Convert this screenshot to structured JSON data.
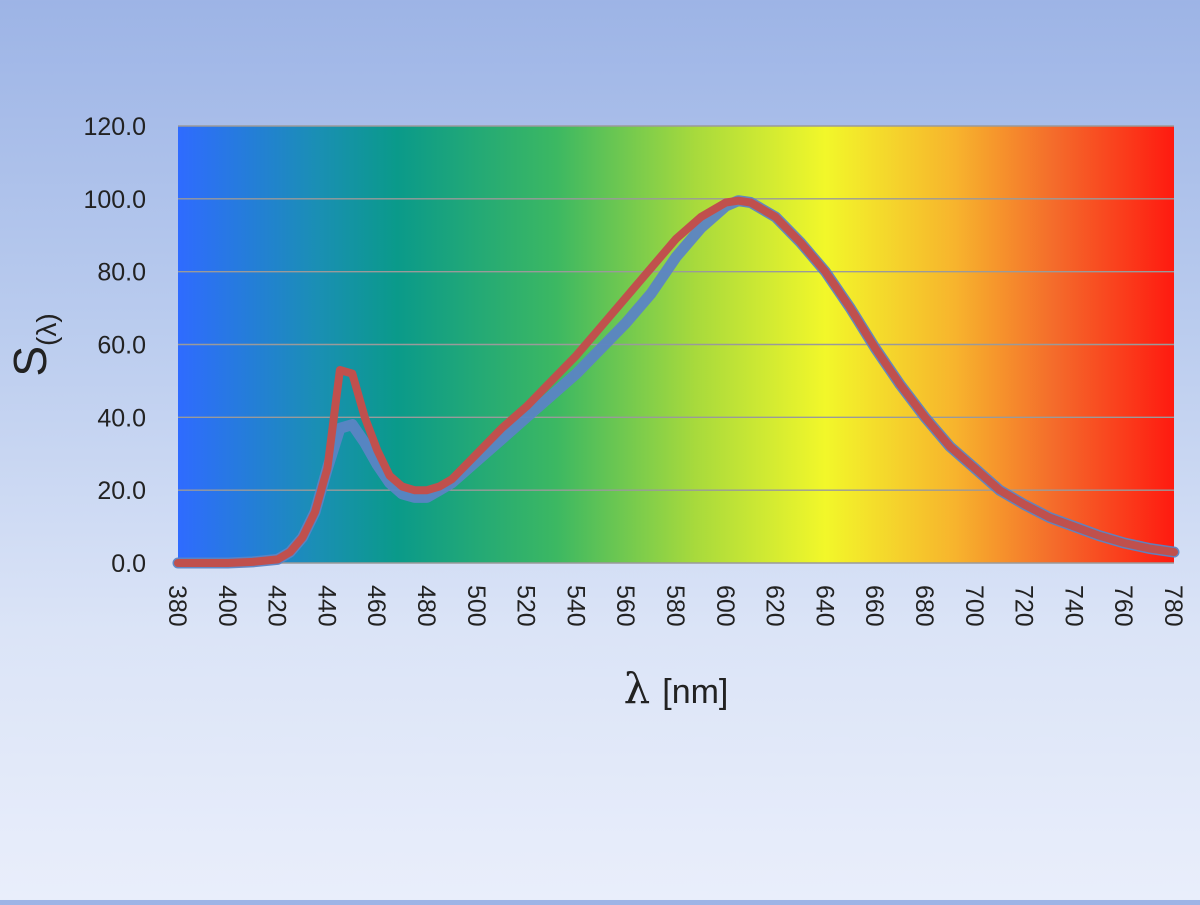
{
  "colors": {
    "series_blue": "#5b84c4",
    "series_red": "#c0504d",
    "gridline": "#9a9a9a",
    "spectrum_stops": [
      "#2f6bff",
      "#1a8fb4",
      "#0a9a8a",
      "#3cb862",
      "#a8da3c",
      "#f2f72a",
      "#f7b42d",
      "#f46b2b",
      "#ff1a10"
    ]
  },
  "chart_data": {
    "type": "line",
    "title": "",
    "ylabel_main": "S",
    "ylabel_sub": "(λ)",
    "xlabel_symbol": "λ",
    "xlabel_unit": "[nm]",
    "xlim": [
      380,
      780
    ],
    "ylim": [
      0,
      120
    ],
    "x_ticks": [
      380,
      400,
      420,
      440,
      460,
      480,
      500,
      520,
      540,
      560,
      580,
      600,
      620,
      640,
      660,
      680,
      700,
      720,
      740,
      760,
      780
    ],
    "y_ticks": [
      "0.0",
      "20.0",
      "40.0",
      "60.0",
      "80.0",
      "100.0",
      "120.0"
    ],
    "grid": true,
    "legend": "none",
    "background": "visible-spectrum-gradient",
    "x": [
      380,
      390,
      400,
      410,
      420,
      425,
      430,
      435,
      440,
      445,
      450,
      455,
      460,
      465,
      470,
      475,
      480,
      485,
      490,
      500,
      510,
      520,
      530,
      540,
      550,
      560,
      570,
      580,
      590,
      600,
      605,
      610,
      620,
      630,
      640,
      650,
      660,
      670,
      680,
      690,
      700,
      710,
      720,
      730,
      740,
      750,
      760,
      770,
      780
    ],
    "series": [
      {
        "color_key": "series_blue",
        "values": [
          0,
          0,
          0,
          0.3,
          1,
          3,
          7,
          14,
          26,
          37,
          38,
          33,
          27,
          22,
          19,
          18,
          18,
          20,
          22,
          28,
          34,
          40,
          46,
          52,
          59,
          66,
          74,
          84,
          92,
          98,
          99.5,
          99,
          95,
          88,
          80,
          70,
          59,
          49,
          40,
          32,
          26,
          20,
          16,
          12.5,
          10,
          7.5,
          5.5,
          4,
          3
        ]
      },
      {
        "color_key": "series_red",
        "values": [
          0,
          0,
          0,
          0.3,
          1,
          3,
          7,
          14,
          26,
          53,
          52,
          40,
          31,
          24,
          21,
          20,
          20,
          21,
          23,
          30,
          37,
          43,
          50,
          57,
          65,
          73,
          81,
          89,
          95,
          99,
          99.5,
          99,
          95,
          88,
          80,
          70,
          59,
          49,
          40,
          32,
          26,
          20,
          16,
          12.5,
          10,
          7.5,
          5.5,
          4,
          3
        ]
      }
    ]
  }
}
